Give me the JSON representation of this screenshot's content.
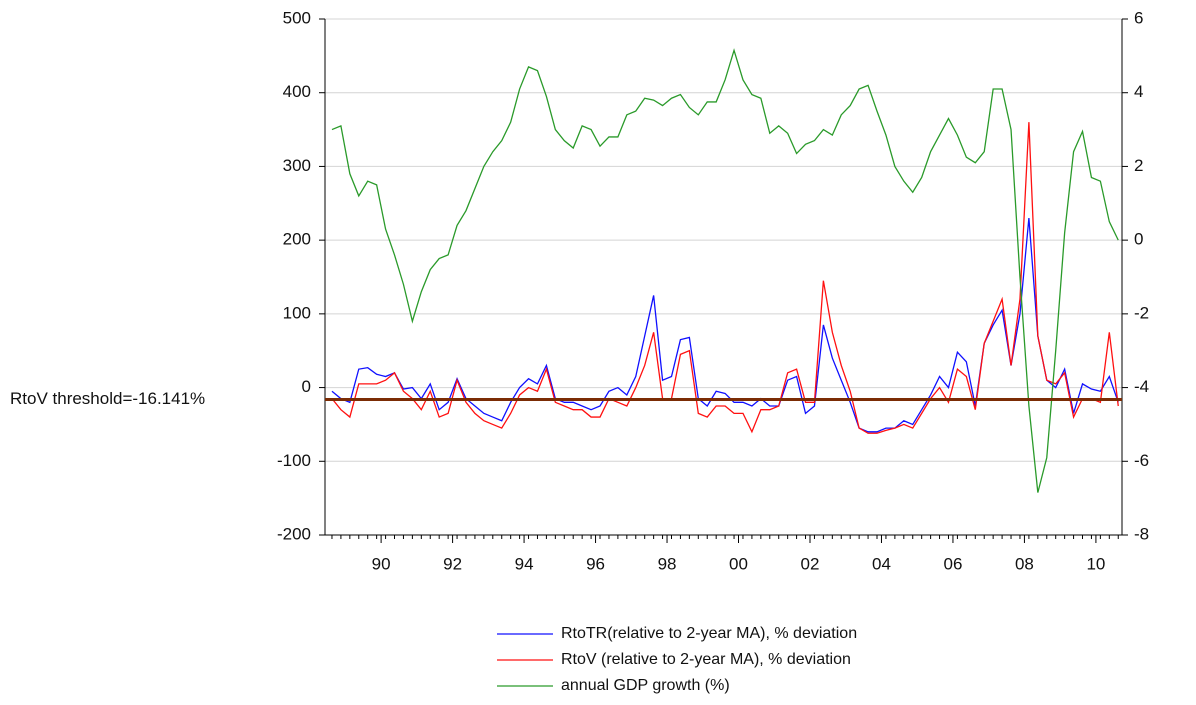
{
  "chart_data": {
    "type": "line",
    "threshold": {
      "value": -16.141,
      "label": "RtoV threshold=-16.141%",
      "color": "#7b2c05"
    },
    "x": [
      1988.625,
      1988.875,
      1989.125,
      1989.375,
      1989.625,
      1989.875,
      1990.125,
      1990.375,
      1990.625,
      1990.875,
      1991.125,
      1991.375,
      1991.625,
      1991.875,
      1992.125,
      1992.375,
      1992.625,
      1992.875,
      1993.125,
      1993.375,
      1993.625,
      1993.875,
      1994.125,
      1994.375,
      1994.625,
      1994.875,
      1995.125,
      1995.375,
      1995.625,
      1995.875,
      1996.125,
      1996.375,
      1996.625,
      1996.875,
      1997.125,
      1997.375,
      1997.625,
      1997.875,
      1998.125,
      1998.375,
      1998.625,
      1998.875,
      1999.125,
      1999.375,
      1999.625,
      1999.875,
      2000.125,
      2000.375,
      2000.625,
      2000.875,
      2001.125,
      2001.375,
      2001.625,
      2001.875,
      2002.125,
      2002.375,
      2002.625,
      2002.875,
      2003.125,
      2003.375,
      2003.625,
      2003.875,
      2004.125,
      2004.375,
      2004.625,
      2004.875,
      2005.125,
      2005.375,
      2005.625,
      2005.875,
      2006.125,
      2006.375,
      2006.625,
      2006.875,
      2007.125,
      2007.375,
      2007.625,
      2007.875,
      2008.125,
      2008.375,
      2008.625,
      2008.875,
      2009.125,
      2009.375,
      2009.625,
      2009.875,
      2010.125,
      2010.375,
      2010.625
    ],
    "series": [
      {
        "name": "RtoTR(relative to 2-year MA), % deviation",
        "color": "#1010ff",
        "axis": "y",
        "values": [
          -5,
          -15,
          -20,
          25,
          27,
          18,
          15,
          20,
          -2,
          0,
          -15,
          5,
          -30,
          -20,
          12,
          -15,
          -25,
          -35,
          -40,
          -45,
          -20,
          0,
          12,
          5,
          30,
          -15,
          -20,
          -20,
          -25,
          -30,
          -25,
          -5,
          0,
          -10,
          15,
          70,
          125,
          10,
          15,
          65,
          68,
          -15,
          -25,
          -5,
          -8,
          -20,
          -20,
          -25,
          -15,
          -25,
          -25,
          10,
          15,
          -35,
          -25,
          85,
          40,
          10,
          -20,
          -55,
          -60,
          -60,
          -55,
          -55,
          -45,
          -50,
          -30,
          -10,
          15,
          0,
          48,
          35,
          -25,
          60,
          85,
          105,
          30,
          100,
          230,
          70,
          10,
          0,
          25,
          -35,
          5,
          -2,
          -5,
          15,
          -20
        ]
      },
      {
        "name": "RtoV (relative to 2-year MA), % deviation",
        "color": "#ff1010",
        "axis": "y",
        "values": [
          -15,
          -30,
          -40,
          5,
          5,
          5,
          10,
          20,
          -5,
          -15,
          -30,
          -5,
          -40,
          -35,
          10,
          -20,
          -35,
          -45,
          -50,
          -55,
          -35,
          -10,
          0,
          -5,
          25,
          -20,
          -25,
          -30,
          -30,
          -40,
          -40,
          -15,
          -20,
          -25,
          0,
          30,
          75,
          -15,
          -15,
          45,
          50,
          -35,
          -40,
          -25,
          -25,
          -35,
          -35,
          -60,
          -30,
          -30,
          -25,
          20,
          25,
          -20,
          -20,
          145,
          75,
          30,
          -5,
          -55,
          -62,
          -62,
          -58,
          -55,
          -50,
          -55,
          -35,
          -15,
          0,
          -20,
          25,
          15,
          -30,
          60,
          90,
          120,
          30,
          120,
          360,
          70,
          10,
          5,
          20,
          -40,
          -15,
          -15,
          -20,
          75,
          -25
        ]
      },
      {
        "name": "annual GDP growth (%)",
        "color": "#2a9a2a",
        "axis": "y2",
        "values": [
          3.0,
          3.1,
          1.8,
          1.2,
          1.6,
          1.5,
          0.3,
          -0.4,
          -1.2,
          -2.2,
          -1.4,
          -0.8,
          -0.5,
          -0.4,
          0.4,
          0.8,
          1.4,
          2.0,
          2.4,
          2.7,
          3.2,
          4.1,
          4.7,
          4.6,
          3.9,
          3.0,
          2.7,
          2.5,
          3.1,
          3.0,
          2.55,
          2.8,
          2.8,
          3.4,
          3.5,
          3.85,
          3.8,
          3.65,
          3.85,
          3.95,
          3.6,
          3.4,
          3.75,
          3.75,
          4.35,
          5.15,
          4.35,
          3.95,
          3.85,
          2.9,
          3.1,
          2.9,
          2.35,
          2.6,
          2.7,
          3.0,
          2.85,
          3.4,
          3.65,
          4.1,
          4.2,
          3.5,
          2.85,
          2.0,
          1.6,
          1.3,
          1.7,
          2.4,
          2.85,
          3.3,
          2.85,
          2.25,
          2.1,
          2.4,
          4.1,
          4.1,
          3.0,
          -1.0,
          -4.5,
          -6.85,
          -5.9,
          -3.0,
          0.2,
          2.4,
          2.95,
          1.7,
          1.6,
          0.5,
          0.0
        ]
      }
    ],
    "xlim": [
      1988.43,
      2010.73
    ],
    "xticks": [
      {
        "value": 1990,
        "label": "90"
      },
      {
        "value": 1992,
        "label": "92"
      },
      {
        "value": 1994,
        "label": "94"
      },
      {
        "value": 1996,
        "label": "96"
      },
      {
        "value": 1998,
        "label": "98"
      },
      {
        "value": 2000,
        "label": "00"
      },
      {
        "value": 2002,
        "label": "02"
      },
      {
        "value": 2004,
        "label": "04"
      },
      {
        "value": 2006,
        "label": "06"
      },
      {
        "value": 2008,
        "label": "08"
      },
      {
        "value": 2010,
        "label": "10"
      }
    ],
    "ylim": [
      -200,
      500
    ],
    "yticks": [
      -200,
      -100,
      0,
      100,
      200,
      300,
      400,
      500
    ],
    "y2lim": [
      -8,
      6
    ],
    "y2ticks": [
      -8,
      -6,
      -4,
      -2,
      0,
      2,
      4,
      6
    ],
    "grid": true
  }
}
